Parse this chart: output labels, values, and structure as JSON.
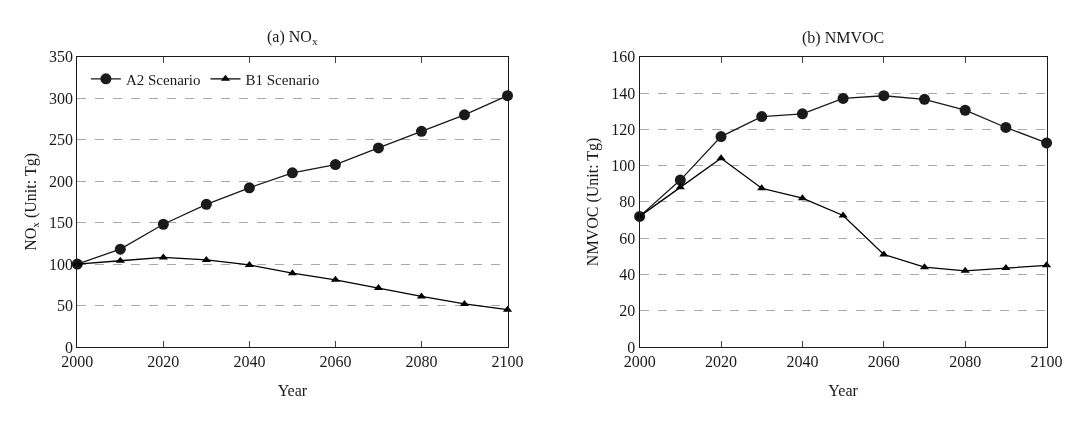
{
  "chart_data": [
    {
      "type": "line",
      "title": "(a) NO$_{x}$",
      "xlabel": "Year",
      "ylabel": "NO$_{x}$ (Unit: Tg)",
      "x": [
        2000,
        2010,
        2020,
        2030,
        2040,
        2050,
        2060,
        2070,
        2080,
        2090,
        2100
      ],
      "series": [
        {
          "name": "A2 Scenario",
          "color": "#1a1a1a",
          "marker": "circle",
          "values": [
            100,
            118,
            148,
            172,
            192,
            210,
            220,
            240,
            260,
            280,
            303
          ]
        },
        {
          "name": "B1 Scenario",
          "color": "#000000",
          "marker": "triangle",
          "values": [
            100,
            104,
            108,
            105,
            99,
            89,
            81,
            71,
            61,
            52,
            45
          ]
        }
      ],
      "xlim": [
        2000,
        2100
      ],
      "xticks": [
        2000,
        2020,
        2040,
        2060,
        2080,
        2100
      ],
      "ylim": [
        0,
        350
      ],
      "yticks": [
        0,
        50,
        100,
        150,
        200,
        250,
        300,
        350
      ],
      "grid": "y",
      "legend": "top left",
      "line_style": "solid"
    },
    {
      "type": "line",
      "title": "(b) NMVOC",
      "xlabel": "Year",
      "ylabel": "NMVOC (Unit: Tg)",
      "x": [
        2000,
        2010,
        2020,
        2030,
        2040,
        2050,
        2060,
        2070,
        2080,
        2090,
        2100
      ],
      "series": [
        {
          "color": "#1a1a1a",
          "marker": "circle",
          "values": [
            72,
            92,
            116,
            127,
            128.5,
            137,
            138.5,
            136.5,
            130.5,
            121,
            112.5
          ]
        },
        {
          "color": "#000000",
          "marker": "triangle",
          "values": [
            72,
            88,
            104,
            87.5,
            82,
            72.5,
            51,
            44,
            42,
            43.5,
            45
          ]
        }
      ],
      "xlim": [
        2000,
        2100
      ],
      "xticks": [
        2000,
        2020,
        2040,
        2060,
        2080,
        2100
      ],
      "ylim": [
        0,
        160
      ],
      "yticks": [
        0,
        20,
        40,
        60,
        80,
        100,
        120,
        140,
        160
      ],
      "grid": "y",
      "legend": false,
      "line_style": "solid"
    }
  ]
}
